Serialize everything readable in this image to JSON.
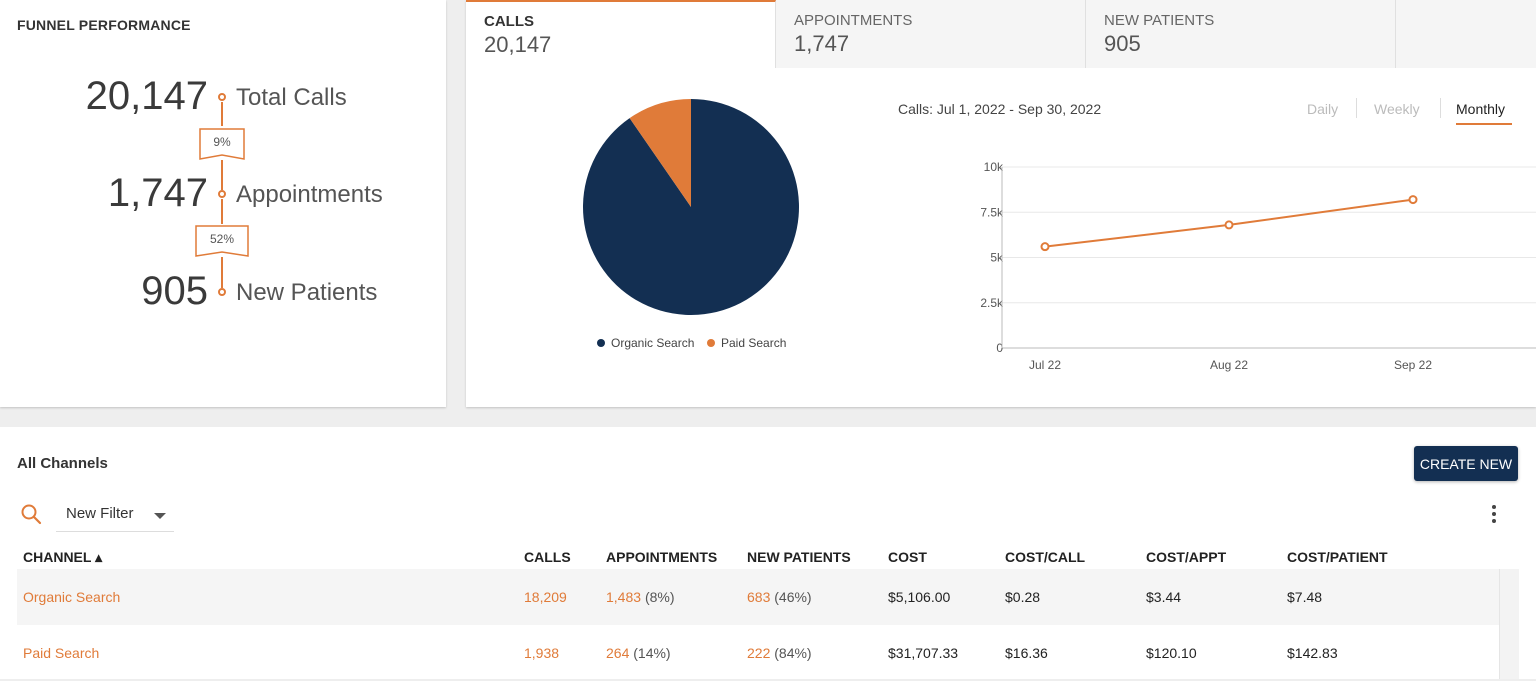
{
  "funnel": {
    "title": "FUNNEL PERFORMANCE",
    "stages": [
      {
        "value": "20,147",
        "label": "Total Calls"
      },
      {
        "value": "1,747",
        "label": "Appointments"
      },
      {
        "value": "905",
        "label": "New Patients"
      }
    ],
    "conversions": [
      "9%",
      "52%"
    ]
  },
  "tabs": [
    {
      "label": "CALLS",
      "value": "20,147",
      "active": true
    },
    {
      "label": "APPOINTMENTS",
      "value": "1,747",
      "active": false
    },
    {
      "label": "NEW PATIENTS",
      "value": "905",
      "active": false
    }
  ],
  "colors": {
    "organic": "#132f52",
    "paid": "#e07b39",
    "accent": "#e07b39"
  },
  "chart_data": [
    {
      "type": "pie",
      "categories": [
        "Organic Search",
        "Paid Search"
      ],
      "values": [
        18209,
        1938
      ],
      "legend": [
        "Organic Search",
        "Paid Search"
      ],
      "legend_placement": "bottom"
    },
    {
      "type": "line",
      "title": "Calls: Jul 1, 2022 - Sep 30, 2022",
      "categories": [
        "Jul 22",
        "Aug 22",
        "Sep 22"
      ],
      "series": [
        {
          "values": [
            5600,
            6800,
            8200
          ]
        }
      ],
      "ylim": [
        0,
        10000
      ],
      "yticks": [
        "0",
        "2.5k",
        "5k",
        "7.5k",
        "10k"
      ],
      "grid": true
    }
  ],
  "period_toggle": {
    "options": [
      "Daily",
      "Weekly",
      "Monthly"
    ],
    "selected": "Monthly"
  },
  "channels": {
    "title": "All Channels",
    "create_label": "CREATE NEW",
    "filter_label": "New Filter",
    "columns": [
      "CHANNEL ▴",
      "CALLS",
      "APPOINTMENTS",
      "NEW PATIENTS",
      "COST",
      "COST/CALL",
      "COST/APPT",
      "COST/PATIENT"
    ],
    "rows": [
      {
        "channel": "Organic Search",
        "calls": "18,209",
        "appts": "1,483",
        "appts_pct": "(8%)",
        "patients": "683",
        "patients_pct": "(46%)",
        "cost": "$5,106.00",
        "cost_call": "$0.28",
        "cost_appt": "$3.44",
        "cost_patient": "$7.48"
      },
      {
        "channel": "Paid Search",
        "calls": "1,938",
        "appts": "264",
        "appts_pct": "(14%)",
        "patients": "222",
        "patients_pct": "(84%)",
        "cost": "$31,707.33",
        "cost_call": "$16.36",
        "cost_appt": "$120.10",
        "cost_patient": "$142.83"
      }
    ]
  }
}
